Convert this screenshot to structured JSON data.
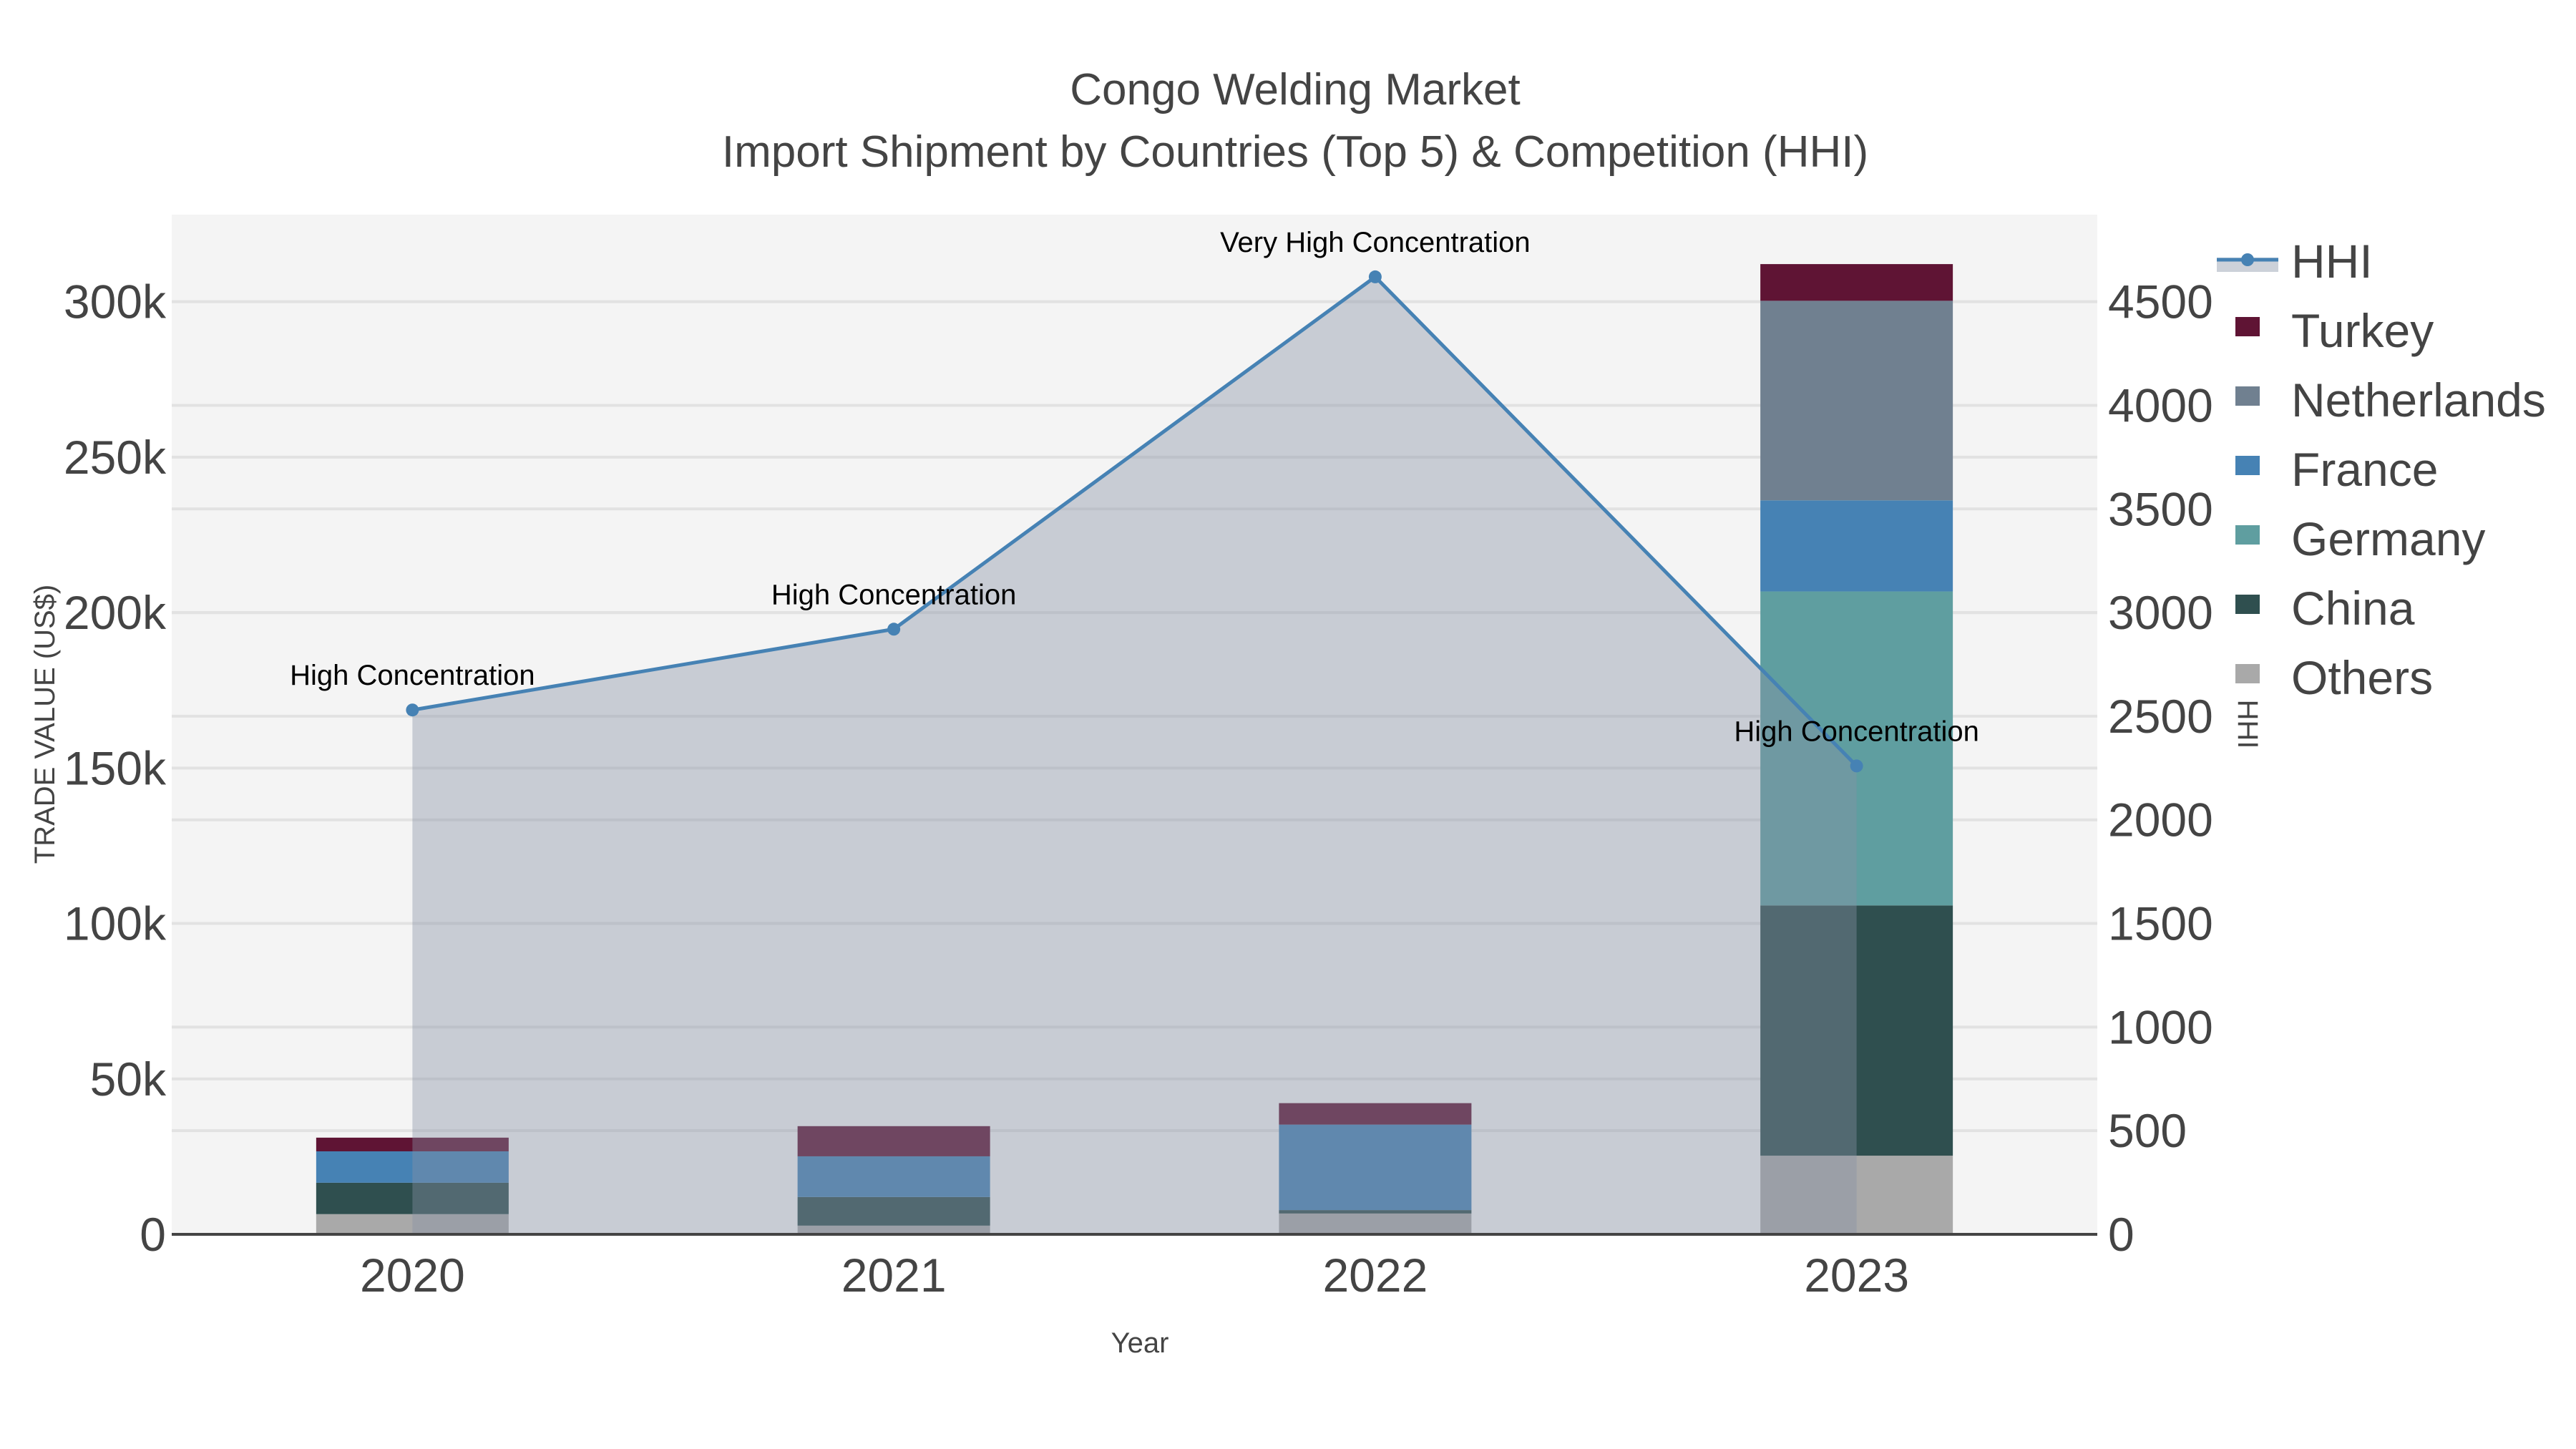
{
  "title": {
    "line1": "Congo Welding Market",
    "line2": "Import Shipment by Countries (Top 5) & Competition (HHI)"
  },
  "axes": {
    "x_title": "Year",
    "y_left_title": "TRADE VALUE (US$)",
    "y_right_title": "HHI",
    "x_ticks": [
      "2020",
      "2021",
      "2022",
      "2023"
    ],
    "y_left_ticks": [
      "0",
      "50k",
      "100k",
      "150k",
      "200k",
      "250k",
      "300k"
    ],
    "y_right_ticks": [
      "0",
      "500",
      "1000",
      "1500",
      "2000",
      "2500",
      "3000",
      "3500",
      "4000",
      "4500"
    ]
  },
  "legend": {
    "items": [
      {
        "label": "HHI",
        "color": "#4682b4",
        "kind": "line"
      },
      {
        "label": "Turkey",
        "color": "#5f1434",
        "kind": "box"
      },
      {
        "label": "Netherlands",
        "color": "#708090",
        "kind": "box"
      },
      {
        "label": "France",
        "color": "#4682b4",
        "kind": "box"
      },
      {
        "label": "Germany",
        "color": "#5f9ea0",
        "kind": "box"
      },
      {
        "label": "China",
        "color": "#2f4f4f",
        "kind": "box"
      },
      {
        "label": "Others",
        "color": "#a9a9a9",
        "kind": "box"
      }
    ]
  },
  "annotations": [
    {
      "year": "2020",
      "text": "High Concentration"
    },
    {
      "year": "2021",
      "text": "High Concentration"
    },
    {
      "year": "2022",
      "text": "Very High Concentration"
    },
    {
      "year": "2023",
      "text": "High Concentration"
    }
  ],
  "chart_data": {
    "type": "bar",
    "stacked": true,
    "title": "Congo Welding Market — Import Shipment by Countries (Top 5) & Competition (HHI)",
    "xlabel": "Year",
    "ylabel": "TRADE VALUE (US$)",
    "y2label": "HHI",
    "categories": [
      "2020",
      "2021",
      "2022",
      "2023"
    ],
    "ylim": [
      0,
      328000
    ],
    "y2lim": [
      0,
      4920
    ],
    "series": [
      {
        "name": "Others",
        "color": "#a9a9a9",
        "values": [
          6500,
          2800,
          6700,
          25300
        ]
      },
      {
        "name": "China",
        "color": "#2f4f4f",
        "values": [
          10100,
          9200,
          1100,
          80500
        ]
      },
      {
        "name": "Germany",
        "color": "#5f9ea0",
        "values": [
          0,
          0,
          0,
          101000
        ]
      },
      {
        "name": "France",
        "color": "#4682b4",
        "values": [
          10100,
          13100,
          27500,
          29300
        ]
      },
      {
        "name": "Netherlands",
        "color": "#708090",
        "values": [
          0,
          0,
          0,
          64200
        ]
      },
      {
        "name": "Turkey",
        "color": "#5f1434",
        "values": [
          4400,
          9700,
          6900,
          11800
        ]
      }
    ],
    "line_series": {
      "name": "HHI",
      "axis": "right",
      "type": "line+area",
      "color": "#4682b4",
      "values": [
        2530,
        2920,
        4620,
        2260
      ],
      "labels": [
        "High Concentration",
        "High Concentration",
        "Very High Concentration",
        "High Concentration"
      ]
    },
    "grid": true,
    "legend_position": "right"
  }
}
